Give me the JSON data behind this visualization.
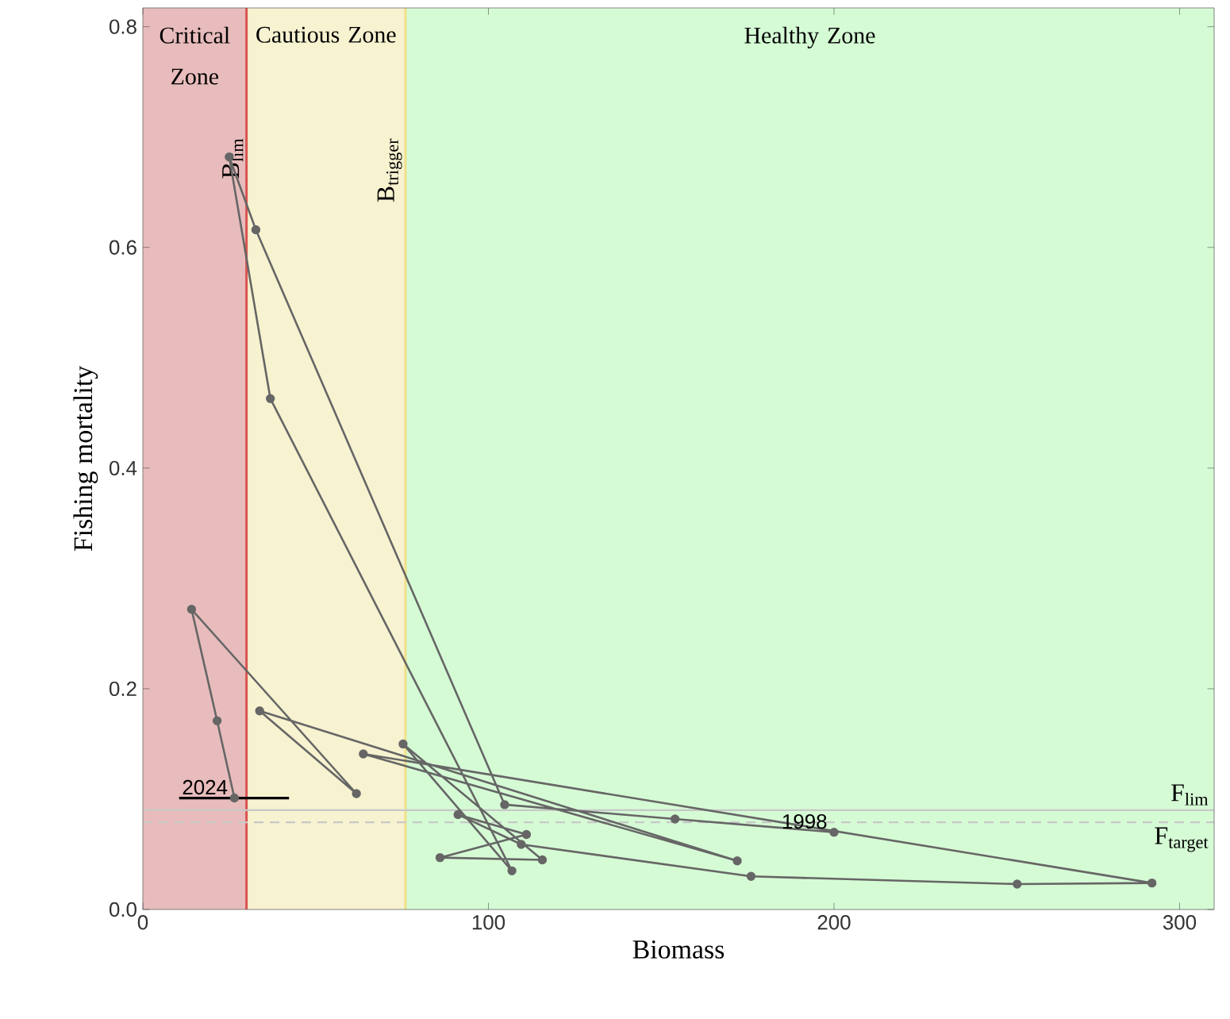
{
  "chart_data": {
    "type": "line",
    "xlabel": "Biomass",
    "ylabel": "Fishing mortality",
    "xlim": [
      0,
      310
    ],
    "ylim": [
      0,
      0.817
    ],
    "xticks": [
      0,
      100,
      200,
      300
    ],
    "yticks": [
      {
        "value": 0,
        "label": "0.0"
      },
      0.2,
      0.4,
      0.6,
      0.8
    ],
    "marker": "circle",
    "line_style": "solid",
    "series": [
      {
        "color": "#666666",
        "x": [
          200,
          154,
          104.7,
          32.7,
          25,
          36.9,
          106.8,
          75.3,
          115.6,
          86,
          111,
          91.2,
          109.5,
          176,
          253,
          292,
          63.8,
          172,
          33.8,
          61.8,
          14.1,
          21.5,
          26.5
        ],
        "values": [
          0.07,
          0.082,
          0.095,
          0.616,
          0.682,
          0.463,
          0.035,
          0.15,
          0.045,
          0.047,
          0.068,
          0.086,
          0.059,
          0.03,
          0.023,
          0.024,
          0.141,
          0.044,
          0.18,
          0.105,
          0.272,
          0.171,
          0.101
        ],
        "xerrors": [
          null,
          null,
          null,
          null,
          null,
          null,
          null,
          null,
          null,
          null,
          null,
          null,
          null,
          null,
          null,
          null,
          null,
          null,
          null,
          null,
          null,
          null,
          [
            10.5,
            42.3
          ]
        ]
      }
    ],
    "bands": [
      {
        "axis": "x",
        "from": 0,
        "to": 30,
        "label": "Critical Zone",
        "color": "#e8bcbc"
      },
      {
        "axis": "x",
        "from": 30,
        "to": 76,
        "label": "Cautious Zone",
        "color": "#f7f2d0"
      },
      {
        "axis": "x",
        "from": 76,
        "to": 310,
        "label": "Healthy Zone",
        "color": "#d5fbd5"
      }
    ],
    "ref_lines": [
      {
        "axis": "x",
        "value": 30,
        "label": "B$_{lim}$",
        "color": "#d9534f",
        "line_style": "solid"
      },
      {
        "axis": "x",
        "value": 76,
        "label": "B$_{trigger}$",
        "color": "#f0e08a",
        "line_style": "solid"
      },
      {
        "axis": "y",
        "value": 0.09,
        "label": "F$_{lim}$",
        "color": "#c8c8c8",
        "line_style": "solid"
      },
      {
        "axis": "y",
        "value": 0.079,
        "label": "F$_{target}$",
        "color": "#c8c8c8",
        "line_style": "dashed"
      }
    ],
    "annotations": [
      {
        "text": "1998",
        "x": 200,
        "y": 0.07
      },
      {
        "text": "2024",
        "x": 26.5,
        "y": 0.101
      }
    ]
  }
}
